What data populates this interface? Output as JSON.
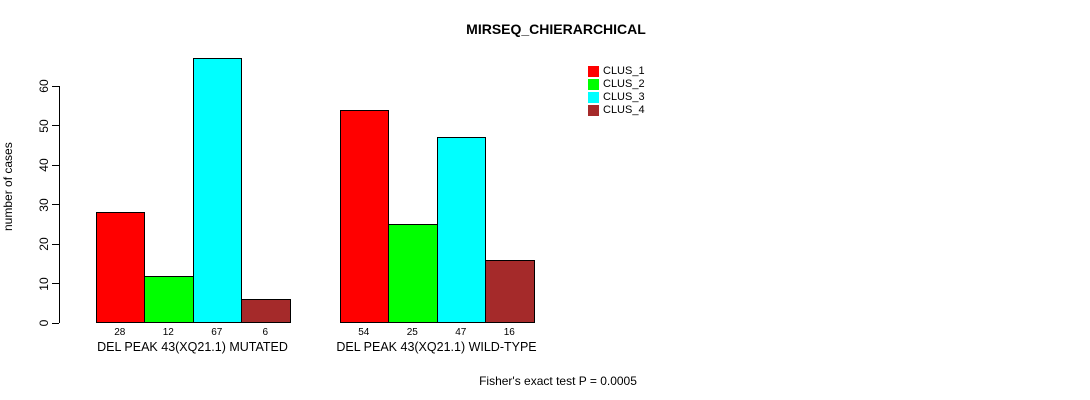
{
  "title": "MIRSEQ_CHIERARCHICAL",
  "y_axis": {
    "label": "number of cases"
  },
  "footer": "Fisher's exact test P = 0.0005",
  "chart_data": {
    "type": "bar",
    "title": "MIRSEQ_CHIERARCHICAL",
    "xlabel": "",
    "ylabel": "number of cases",
    "ylim": [
      0,
      60
    ],
    "yticks": [
      0,
      10,
      20,
      30,
      40,
      50,
      60
    ],
    "grid": false,
    "categories": [
      "DEL PEAK 43(XQ21.1) MUTATED",
      "DEL PEAK 43(XQ21.1) WILD-TYPE"
    ],
    "series": [
      {
        "name": "CLUS_1",
        "color": "#FF0000",
        "values": [
          28,
          54
        ]
      },
      {
        "name": "CLUS_2",
        "color": "#00FF00",
        "values": [
          12,
          25
        ]
      },
      {
        "name": "CLUS_3",
        "color": "#00FFFF",
        "values": [
          67,
          47
        ]
      },
      {
        "name": "CLUS_4",
        "color": "#A52A2A",
        "values": [
          6,
          16
        ]
      }
    ],
    "bar_value_labels": [
      [
        28,
        12,
        67,
        6
      ],
      [
        54,
        25,
        47,
        16
      ]
    ],
    "legend_position": "top-right",
    "legend_entries": [
      "CLUS_1",
      "CLUS_2",
      "CLUS_3",
      "CLUS_4"
    ],
    "annotation": "Fisher's exact test P = 0.0005"
  }
}
